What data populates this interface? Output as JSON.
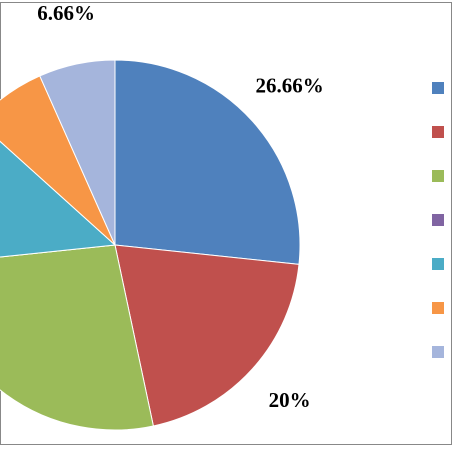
{
  "chart_data": {
    "type": "pie",
    "categories": [
      null,
      null,
      null,
      null,
      null,
      null,
      null
    ],
    "values": [
      26.66,
      20,
      26.66,
      0,
      13.33,
      6.66,
      6.66
    ],
    "value_labels": [
      "26.66%",
      "20%",
      null,
      null,
      null,
      null,
      "6.66%"
    ],
    "colors": [
      "#4f81bd",
      "#c0504d",
      "#9bbb59",
      "#8064a2",
      "#4bacc6",
      "#f79646",
      "#a5b5dc"
    ],
    "legend": "right"
  }
}
